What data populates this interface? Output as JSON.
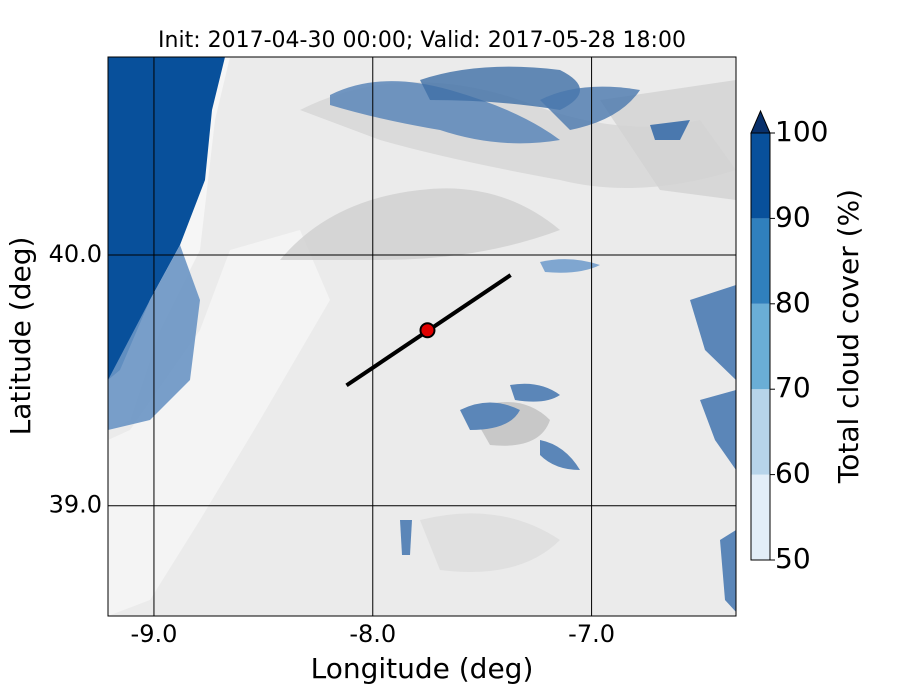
{
  "title": "Init: 2017-04-30 00:00; Valid: 2017-05-28 18:00",
  "map": {
    "xlabel": "Longitude (deg)",
    "ylabel": "Latitude (deg)",
    "xlim": [
      -9.21,
      -6.34
    ],
    "ylim": [
      38.56,
      40.79
    ],
    "xticks": [
      {
        "value": -9,
        "label": "-9.0"
      },
      {
        "value": -8,
        "label": "-8.0"
      },
      {
        "value": -7,
        "label": "-7.0"
      }
    ],
    "yticks": [
      {
        "value": 39,
        "label": "39.0"
      },
      {
        "value": 40,
        "label": "40.0"
      }
    ],
    "transect": {
      "lon": [
        -8.12,
        -7.37
      ],
      "lat": [
        39.48,
        39.92
      ],
      "color": "#000000"
    },
    "point": {
      "lon": -7.75,
      "lat": 39.7,
      "color": "#e00000"
    }
  },
  "colorbar": {
    "label": "Total cloud cover (%)",
    "lim": [
      50,
      100
    ],
    "ticks": [
      50,
      60,
      70,
      80,
      90,
      100
    ],
    "colors": [
      "#e3eef8",
      "#b7d4ea",
      "#6aaed6",
      "#3080bd",
      "#08509b"
    ],
    "extend_color": "#08306b"
  }
}
